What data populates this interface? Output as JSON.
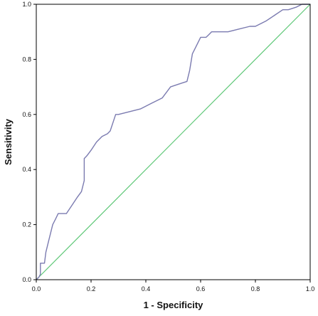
{
  "chart_data": {
    "type": "line",
    "title": "",
    "xlabel": "1 - Specificity",
    "ylabel": "Sensitivity",
    "xlim": [
      0,
      1
    ],
    "ylim": [
      0,
      1
    ],
    "x_ticks": [
      "0.0",
      "0.2",
      "0.4",
      "0.6",
      "0.8",
      "1.0"
    ],
    "y_ticks": [
      "0.0",
      "0.2",
      "0.4",
      "0.6",
      "0.8",
      "1.0"
    ],
    "grid": false,
    "legend": "none",
    "colors": {
      "roc_curve": "#7b7bb0",
      "reference_line": "#5fc878",
      "axes": "#000000"
    },
    "series": [
      {
        "x": [
          0.0,
          0.01,
          0.015,
          0.015,
          0.03,
          0.035,
          0.045,
          0.06,
          0.07,
          0.08,
          0.1,
          0.11,
          0.13,
          0.15,
          0.165,
          0.175,
          0.175,
          0.185,
          0.2,
          0.22,
          0.24,
          0.26,
          0.27,
          0.29,
          0.3,
          0.34,
          0.38,
          0.42,
          0.46,
          0.49,
          0.52,
          0.55,
          0.56,
          0.57,
          0.58,
          0.6,
          0.62,
          0.63,
          0.64,
          0.7,
          0.74,
          0.78,
          0.8,
          0.84,
          0.87,
          0.9,
          0.92,
          0.95,
          0.97,
          1.0
        ],
        "y": [
          0.0,
          0.01,
          0.02,
          0.06,
          0.06,
          0.1,
          0.14,
          0.2,
          0.22,
          0.24,
          0.24,
          0.24,
          0.27,
          0.3,
          0.32,
          0.36,
          0.44,
          0.45,
          0.47,
          0.5,
          0.52,
          0.53,
          0.54,
          0.6,
          0.6,
          0.61,
          0.62,
          0.64,
          0.66,
          0.7,
          0.71,
          0.72,
          0.76,
          0.82,
          0.84,
          0.88,
          0.88,
          0.89,
          0.9,
          0.9,
          0.91,
          0.92,
          0.92,
          0.94,
          0.96,
          0.98,
          0.98,
          0.99,
          1.0,
          1.0
        ]
      },
      {
        "x": [
          0.0,
          1.0
        ],
        "y": [
          0.0,
          1.0
        ]
      }
    ]
  }
}
